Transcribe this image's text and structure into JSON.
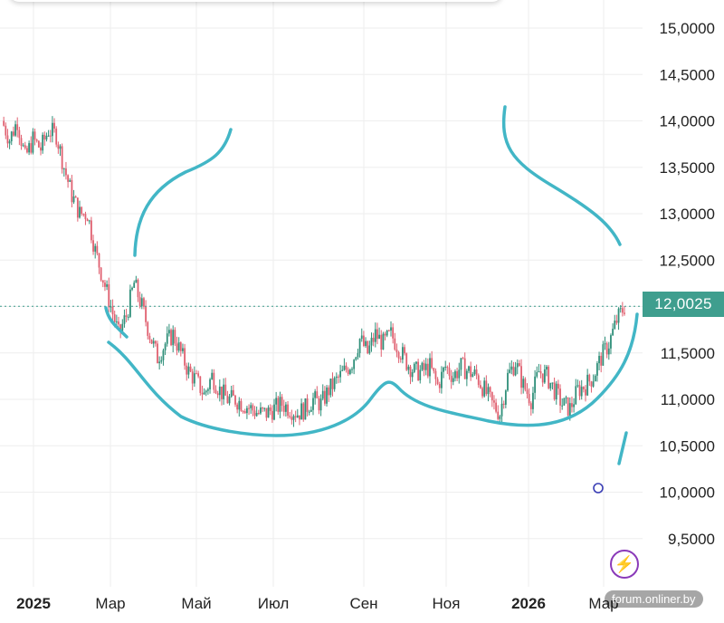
{
  "chart_data": {
    "type": "candlestick",
    "title": "",
    "xlabel": "",
    "ylabel": "",
    "ylim": [
      9.0,
      15.3
    ],
    "y_ticks": [
      "15,0000",
      "14,5000",
      "14,0000",
      "13,5000",
      "13,0000",
      "12,5000",
      "12,0000",
      "11,5000",
      "11,0000",
      "10,5000",
      "10,0000",
      "9,5000"
    ],
    "x_tick_labels": [
      "2025",
      "Мар",
      "Май",
      "Июл",
      "Сен",
      "Ноя",
      "2026",
      "Мар"
    ],
    "current_price": "12,0025",
    "grid": true,
    "colors": {
      "up": "#2f8f79",
      "down": "#e06070",
      "annotation": "#42b6c6",
      "price_line": "#3f9e8e"
    },
    "series": [
      {
        "values": [
          14.0,
          13.8,
          14.0,
          13.6,
          13.8,
          13.7,
          13.9,
          13.85,
          13.5,
          13.2,
          13.0,
          13.0,
          12.6,
          12.3,
          12.0,
          11.7,
          11.9,
          12.25,
          12.0,
          11.7,
          11.45,
          11.6,
          11.7,
          11.5,
          11.3,
          11.2,
          11.05,
          11.25,
          11.1,
          11.0,
          11.0,
          10.95,
          10.9,
          10.85,
          10.85,
          10.9,
          10.95,
          10.9,
          10.85,
          10.9,
          11.0,
          10.95,
          11.1,
          11.2,
          11.3,
          11.4,
          11.65,
          11.5,
          11.7,
          11.6,
          11.7,
          11.55,
          11.4,
          11.3,
          11.3,
          11.35,
          11.15,
          11.35,
          11.25,
          11.35,
          11.3,
          11.25,
          11.1,
          10.95,
          10.85,
          11.25,
          11.4,
          11.15,
          11.0,
          11.3,
          11.25,
          11.1,
          10.95,
          10.9,
          11.1,
          11.15,
          11.25,
          11.45,
          11.6,
          11.85,
          12.0
        ]
      }
    ]
  },
  "ui": {
    "price_tag": "12,0025",
    "bolt_icon": "⚡",
    "watermark": "forum.onliner.by"
  }
}
